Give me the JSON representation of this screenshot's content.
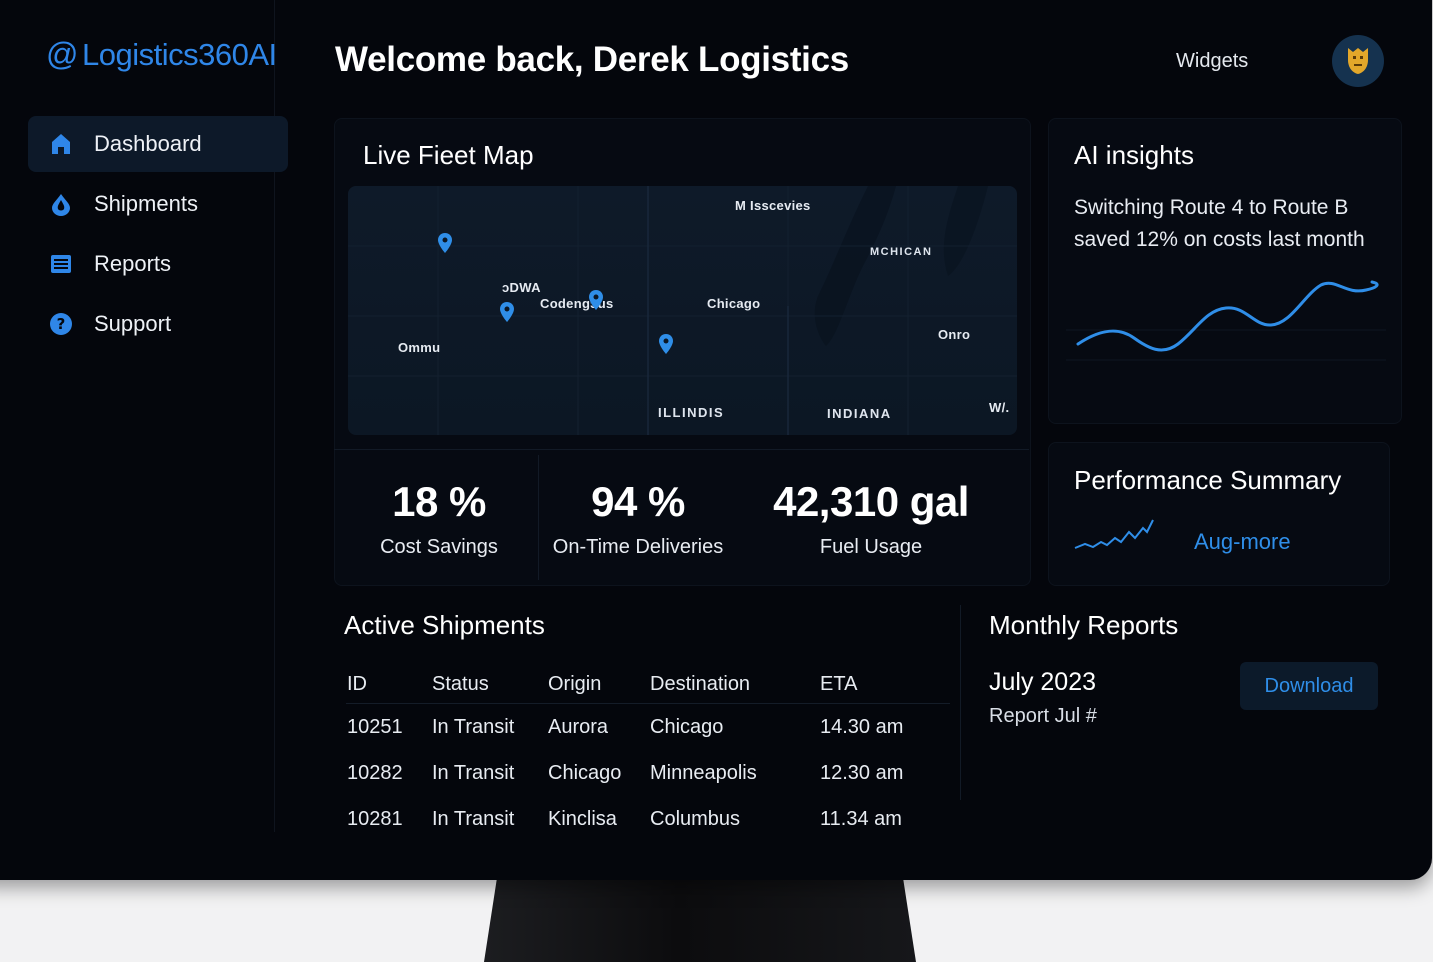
{
  "app": {
    "logo_text": "Logistics360AI"
  },
  "sidebar": {
    "items": [
      {
        "label": "Dashboard",
        "icon": "home-icon",
        "active": true
      },
      {
        "label": "Shipments",
        "icon": "drop-icon",
        "active": false
      },
      {
        "label": "Reports",
        "icon": "list-icon",
        "active": false
      },
      {
        "label": "Support",
        "icon": "help-icon",
        "active": false
      }
    ]
  },
  "header": {
    "title": "Welcome back, Derek Logistics",
    "widgets_label": "Widgets"
  },
  "map": {
    "title": "Live Fieet Map",
    "labels": {
      "milwaukee": "M Isscevies",
      "michigan": "MCHICAN",
      "iowa": "ɔDWA",
      "codeng": "Codengɔus",
      "chicago": "Chicago",
      "omaha": "Ommu",
      "ohio": "Onro",
      "illinois": "ILLINDIS",
      "indiana": "INDIANA",
      "wv": "W/."
    }
  },
  "stats": [
    {
      "value": "18 %",
      "label": "Cost Savings"
    },
    {
      "value": "94 %",
      "label": "On-Time Deliveries"
    },
    {
      "value": "42,310 gal",
      "label": "Fuel Usage"
    }
  ],
  "insights": {
    "title": "AI insights",
    "text": "Switching Route 4 to Route B saved 12% on costs last month"
  },
  "performance": {
    "title": "Performance Summary",
    "link": "Aug-more"
  },
  "shipments": {
    "title": "Active Shipments",
    "columns": [
      "ID",
      "Status",
      "Origin",
      "Destination",
      "ETA"
    ],
    "rows": [
      [
        "10251",
        "In Transit",
        "Aurora",
        "Chicago",
        "14.30 am"
      ],
      [
        "10282",
        "In Transit",
        "Chicago",
        "Minneapolis",
        "12.30 am"
      ],
      [
        "10281",
        "In Transit",
        "Kinclisa",
        "Columbus",
        "11.34 am"
      ]
    ]
  },
  "reports": {
    "title": "Monthly Reports",
    "month": "July 2023",
    "sub": "Report Jul #",
    "download_label": "Download"
  },
  "colors": {
    "accent": "#2f86e8",
    "background": "#04060c",
    "card": "#060a12"
  }
}
